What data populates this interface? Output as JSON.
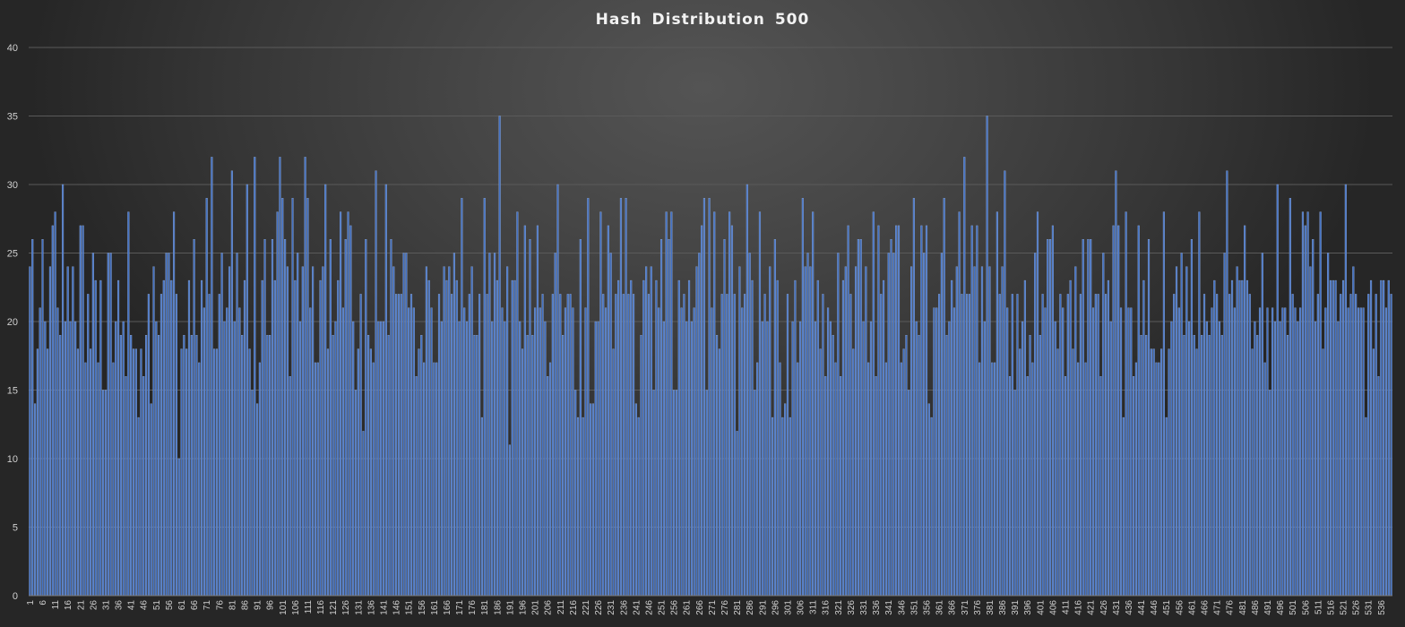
{
  "chart_data": {
    "type": "bar",
    "title": "Hash Distribution 500",
    "xlabel": "",
    "ylabel": "",
    "ylim": [
      0,
      40
    ],
    "yticks": [
      0,
      5,
      10,
      15,
      20,
      25,
      30,
      35,
      40
    ],
    "x_start": 1,
    "x_tick_step": 5,
    "grid": true,
    "legend": "none",
    "colors": {
      "bar": "#4472c4",
      "bar_edge": "#8eaadb",
      "grid": "#5a5a5a",
      "tick_label": "#d0d0d0",
      "title": "#f2f2f2"
    },
    "values": [
      24,
      26,
      14,
      18,
      21,
      26,
      20,
      18,
      24,
      27,
      28,
      21,
      19,
      30,
      20,
      24,
      20,
      24,
      20,
      18,
      27,
      27,
      17,
      22,
      18,
      25,
      23,
      17,
      23,
      15,
      15,
      25,
      25,
      17,
      20,
      23,
      19,
      20,
      16,
      28,
      19,
      18,
      18,
      13,
      18,
      16,
      19,
      22,
      14,
      24,
      20,
      19,
      22,
      23,
      25,
      25,
      23,
      28,
      22,
      10,
      18,
      19,
      18,
      23,
      19,
      26,
      19,
      17,
      23,
      21,
      29,
      22,
      32,
      18,
      18,
      22,
      25,
      20,
      21,
      24,
      31,
      20,
      25,
      21,
      19,
      23,
      30,
      18,
      15,
      32,
      14,
      17,
      23,
      26,
      19,
      19,
      26,
      23,
      28,
      32,
      29,
      26,
      24,
      16,
      29,
      23,
      25,
      20,
      24,
      32,
      29,
      21,
      24,
      17,
      17,
      23,
      24,
      30,
      18,
      26,
      19,
      20,
      23,
      28,
      21,
      26,
      28,
      27,
      20,
      15,
      18,
      22,
      12,
      26,
      19,
      18,
      17,
      31,
      20,
      20,
      20,
      30,
      19,
      26,
      24,
      22,
      22,
      22,
      25,
      25,
      21,
      22,
      21,
      16,
      18,
      19,
      17,
      24,
      23,
      21,
      17,
      17,
      22,
      20,
      24,
      23,
      24,
      22,
      25,
      23,
      20,
      29,
      21,
      20,
      22,
      24,
      19,
      19,
      22,
      13,
      29,
      22,
      25,
      20,
      25,
      23,
      35,
      21,
      20,
      24,
      11,
      23,
      23,
      28,
      20,
      18,
      27,
      19,
      26,
      19,
      21,
      27,
      21,
      22,
      20,
      16,
      17,
      22,
      25,
      30,
      22,
      19,
      21,
      22,
      22,
      21,
      15,
      13,
      26,
      13,
      21,
      29,
      14,
      14,
      20,
      20,
      28,
      22,
      21,
      27,
      25,
      18,
      22,
      23,
      29,
      22,
      29,
      22,
      23,
      22,
      14,
      13,
      19,
      23,
      24,
      22,
      24,
      15,
      23,
      21,
      26,
      20,
      28,
      26,
      28,
      15,
      15,
      23,
      21,
      22,
      20,
      23,
      20,
      21,
      24,
      25,
      27,
      29,
      15,
      29,
      21,
      28,
      19,
      18,
      22,
      26,
      22,
      28,
      27,
      22,
      12,
      24,
      21,
      22,
      30,
      25,
      23,
      15,
      17,
      28,
      20,
      22,
      20,
      24,
      13,
      26,
      23,
      17,
      13,
      14,
      22,
      13,
      20,
      23,
      17,
      20,
      29,
      24,
      25,
      24,
      28,
      20,
      23,
      18,
      22,
      16,
      21,
      20,
      19,
      17,
      25,
      16,
      23,
      24,
      27,
      22,
      18,
      24,
      26,
      26,
      20,
      24,
      17,
      20,
      28,
      16,
      27,
      22,
      23,
      17,
      25,
      26,
      25,
      27,
      27,
      17,
      18,
      19,
      15,
      24,
      29,
      20,
      19,
      27,
      25,
      27,
      14,
      13,
      21,
      21,
      22,
      25,
      29,
      19,
      20,
      23,
      21,
      24,
      28,
      22,
      32,
      22,
      22,
      27,
      24,
      27,
      17,
      24,
      20,
      35,
      24,
      17,
      17,
      28,
      22,
      24,
      31,
      21,
      16,
      22,
      15,
      22,
      18,
      20,
      23,
      16,
      19,
      17,
      25,
      28,
      19,
      22,
      21,
      26,
      26,
      27,
      20,
      18,
      22,
      21,
      16,
      22,
      23,
      18,
      24,
      17,
      22,
      26,
      17,
      26,
      26,
      21,
      22,
      22,
      16,
      25,
      22,
      23,
      20,
      27,
      31,
      27,
      21,
      13,
      28,
      21,
      21,
      16,
      17,
      27,
      19,
      23,
      19,
      26,
      18,
      18,
      17,
      17,
      18,
      28,
      13,
      18,
      20,
      22,
      24,
      21,
      25,
      19,
      24,
      20,
      26,
      19,
      18,
      28,
      19,
      22,
      20,
      19,
      21,
      23,
      22,
      20,
      19,
      25,
      31,
      22,
      23,
      21,
      24,
      23,
      23,
      27,
      23,
      22,
      18,
      20,
      19,
      21,
      25,
      17,
      21,
      15,
      21,
      20,
      30,
      20,
      21,
      21,
      19,
      29,
      22,
      21,
      20,
      21,
      28,
      27,
      28,
      24,
      26,
      20,
      22,
      28,
      18,
      21,
      25,
      23,
      23,
      23,
      20,
      22,
      23,
      30,
      21,
      22,
      24,
      22,
      21,
      21,
      21,
      13,
      22,
      23,
      18,
      22,
      16,
      23,
      23,
      21,
      23,
      22
    ]
  }
}
